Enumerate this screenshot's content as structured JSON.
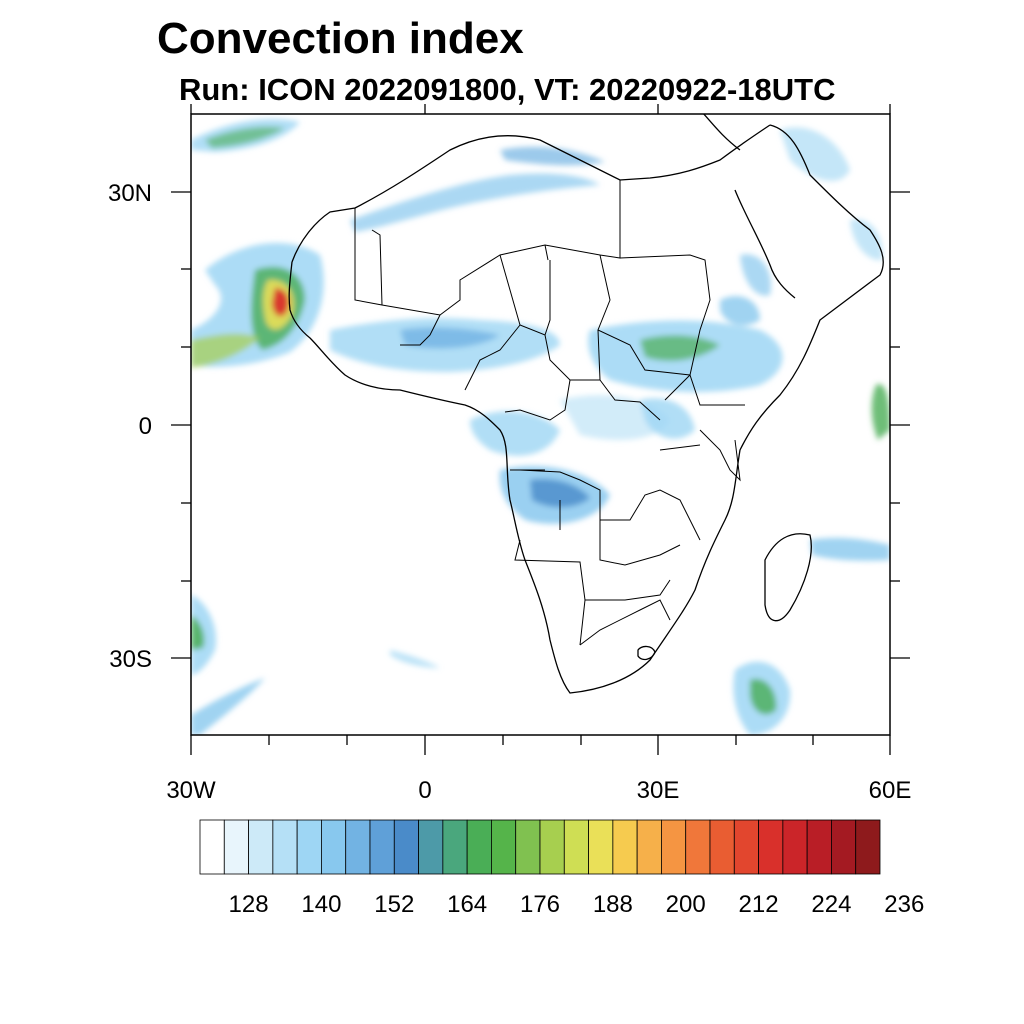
{
  "title": "Convection index",
  "subtitle": "Run: ICON 2022091800,  VT: 20220922-18UTC",
  "map": {
    "lon_range": [
      -30,
      60
    ],
    "lat_range": [
      -40,
      40
    ],
    "x_ticks": [
      {
        "value": -30,
        "label": "30W"
      },
      {
        "value": 0,
        "label": "0"
      },
      {
        "value": 30,
        "label": "30E"
      },
      {
        "value": 60,
        "label": "60E"
      }
    ],
    "y_ticks": [
      {
        "value": 30,
        "label": "30N"
      },
      {
        "value": 0,
        "label": "0"
      },
      {
        "value": -30,
        "label": "30S"
      }
    ]
  },
  "colorbar": {
    "colors": [
      "#ffffff",
      "#e8f5fc",
      "#cdeaf8",
      "#b5e0f6",
      "#9ed6f4",
      "#88c8ee",
      "#72b3e3",
      "#5fa0d8",
      "#4a8bc9",
      "#4d9aa8",
      "#4aa77d",
      "#4aae56",
      "#55b44a",
      "#80c150",
      "#a7cf4f",
      "#cfde54",
      "#eae058",
      "#f6cb4f",
      "#f6b04a",
      "#f59542",
      "#f0773a",
      "#e95d32",
      "#e2462e",
      "#d9302b",
      "#cb2529",
      "#b91e26",
      "#a41a22",
      "#8e1a1c"
    ],
    "labels": [
      "128",
      "140",
      "152",
      "164",
      "176",
      "188",
      "200",
      "212",
      "224",
      "236"
    ]
  }
}
